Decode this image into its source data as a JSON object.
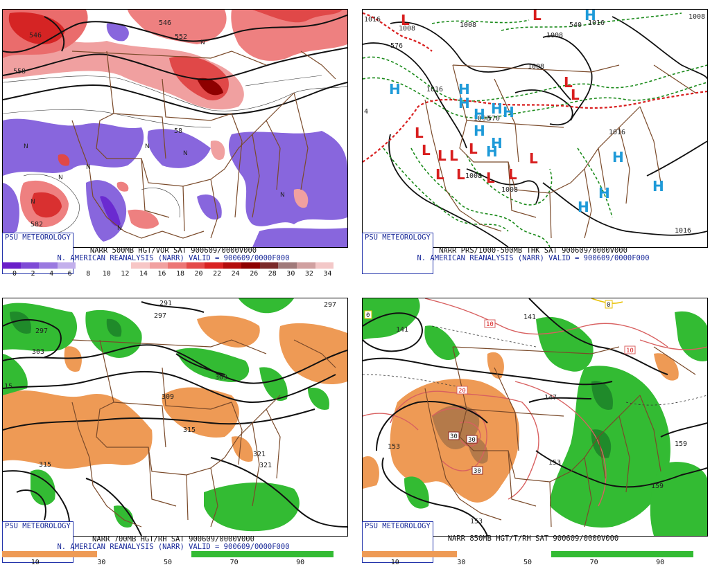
{
  "psu_label": "PSU METEOROLOGY",
  "panels": [
    {
      "caption1": "NARR 500MB HGT/VOR SAT 900609/0000V000",
      "caption2": "N. AMERICAN REANALYSIS (NARR) VALID = 900609/0000F000",
      "colorbar": {
        "colors": [
          "#6a1fc9",
          "#7e4ad6",
          "#9a79e0",
          "#c3b0ec",
          "#ffffff",
          "#ffffff",
          "#ffffff",
          "#f7c6c6",
          "#f1a0a0",
          "#ec7676",
          "#e44a4a",
          "#d92222",
          "#b40d0d",
          "#8e0000",
          "#7a2a2a",
          "#a07a7a",
          "#d0a0a0",
          "#f3c8c8"
        ],
        "ticks": [
          "0",
          "2",
          "4",
          "6",
          "8",
          "10",
          "12",
          "14",
          "16",
          "18",
          "20",
          "22",
          "24",
          "26",
          "28",
          "30",
          "32",
          "34"
        ]
      },
      "contour_labels": [
        "546",
        "552",
        "558",
        "582",
        "582",
        "582"
      ]
    },
    {
      "caption1": "NARR PRS/1000-500MB THK SAT 900609/0000V000",
      "caption2": "N. AMERICAN REANALYSIS (NARR) VALID = 900609/0000F000",
      "contour_labels": [
        "1016",
        "1008",
        "1008",
        "1008",
        "1016",
        "1016",
        "1008",
        "1016",
        "1016",
        "1008",
        "1008",
        "1016",
        "1008",
        "570",
        "576",
        "540",
        "4"
      ],
      "lows": 14,
      "highs": 11
    },
    {
      "caption1": "NARR 700MB HGT/RH SAT 900609/0000V000",
      "caption2": "N. AMERICAN REANALYSIS (NARR) VALID = 900609/0000F000",
      "colorbar": {
        "colors": [
          "#ee9a55",
          "#ee9a55",
          "#ffffff",
          "#ffffff",
          "#33bb33",
          "#33bb33",
          "#33bb33"
        ],
        "ticks": [
          "10",
          "30",
          "50",
          "70",
          "90"
        ]
      },
      "contour_labels": [
        "291",
        "297",
        "297",
        "303",
        "309",
        "309",
        "315",
        "315",
        "321",
        "321",
        "15"
      ]
    },
    {
      "caption1": "NARR 850MB HGT/T/RH SAT 900609/0000V000",
      "caption2": "",
      "colorbar": {
        "colors": [
          "#ee9a55",
          "#ee9a55",
          "#ffffff",
          "#ffffff",
          "#33bb33",
          "#33bb33",
          "#33bb33"
        ],
        "ticks": [
          "10",
          "30",
          "50",
          "70",
          "90"
        ]
      },
      "contour_labels": [
        "141",
        "141",
        "147",
        "153",
        "153",
        "159",
        "159",
        "153"
      ],
      "temp_labels": [
        "10",
        "10",
        "10",
        "20",
        "30",
        "30",
        "30",
        "0",
        "0"
      ]
    }
  ],
  "colors": {
    "border": "#7a4a2a",
    "low_marker": "#d81e1e",
    "high_marker": "#1e9ad8",
    "thickness_green": "#1a8a1a",
    "thickness_red": "#d81e1e",
    "text_blue": "#1a2a9a"
  }
}
